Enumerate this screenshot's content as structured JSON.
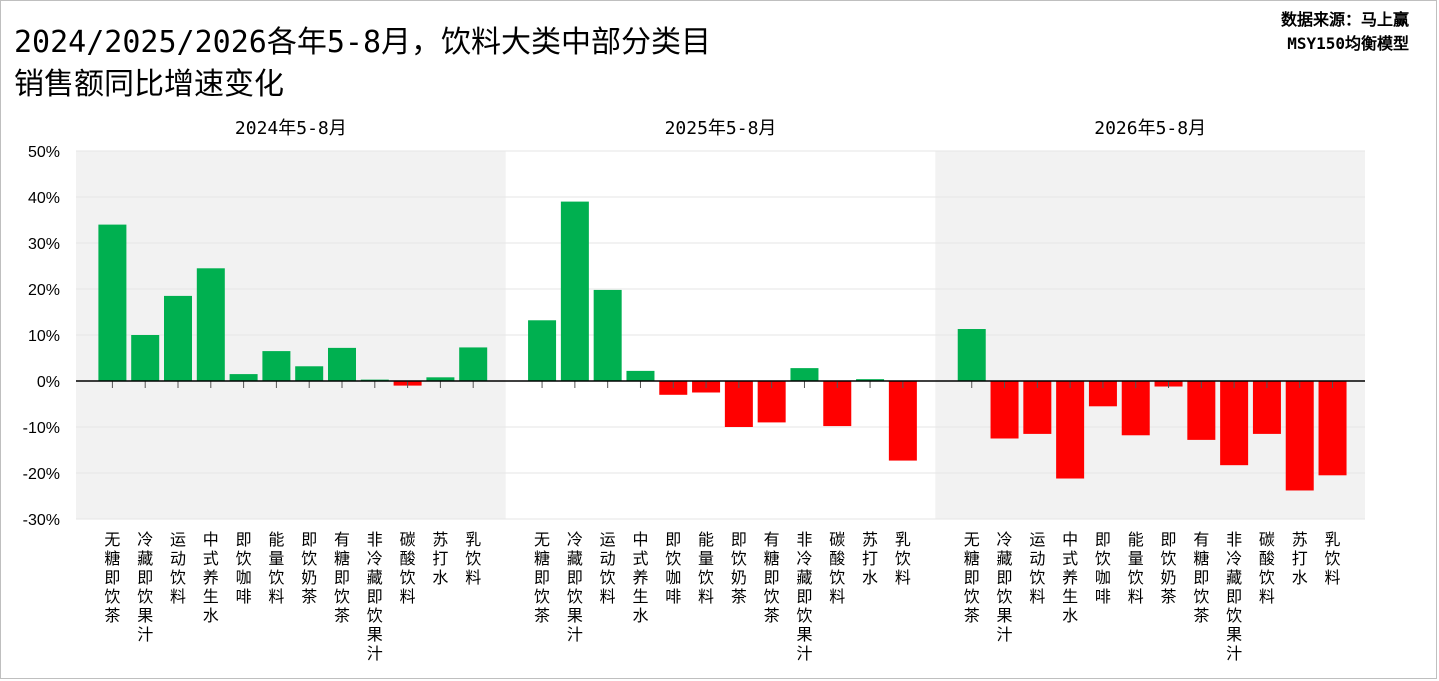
{
  "header": {
    "title_line1": "2024/2025/2026各年5-8月，饮料大类中部分类目",
    "title_line2": "销售额同比增速变化",
    "source_line1": "数据来源：马上赢",
    "source_line2": "MSY150均衡模型"
  },
  "chart_data": {
    "type": "bar",
    "ylim": [
      -30,
      50
    ],
    "yticks": [
      "50%",
      "40%",
      "30%",
      "20%",
      "10%",
      "0%",
      "-10%",
      "-20%",
      "-30%"
    ],
    "ytick_values": [
      50,
      40,
      30,
      20,
      10,
      0,
      -10,
      -20,
      -30
    ],
    "colors": {
      "positive": "#00b050",
      "negative": "#ff0000",
      "panel_bg": "#f2f2f2"
    },
    "categories": [
      "无糖即饮茶",
      "冷藏即饮果汁",
      "运动饮料",
      "中式养生水",
      "即饮咖啡",
      "能量饮料",
      "即饮奶茶",
      "有糖即饮茶",
      "非冷藏即饮果汁",
      "碳酸饮料",
      "苏打水",
      "乳饮料"
    ],
    "panels": [
      {
        "title": "2024年5-8月",
        "values": [
          34,
          10,
          18.5,
          24.5,
          1.5,
          6.5,
          3.2,
          7.2,
          0.3,
          -1,
          0.8,
          7.3
        ]
      },
      {
        "title": "2025年5-8月",
        "values": [
          13.2,
          39,
          19.8,
          2.2,
          -3,
          -2.5,
          -10,
          -9,
          2.8,
          -9.8,
          0.4,
          -17.3
        ]
      },
      {
        "title": "2026年5-8月",
        "values": [
          11.3,
          -12.5,
          -11.5,
          -21.2,
          -5.5,
          -11.8,
          -1.2,
          -12.8,
          -18.3,
          -11.5,
          -23.8,
          -20.5
        ]
      }
    ]
  }
}
